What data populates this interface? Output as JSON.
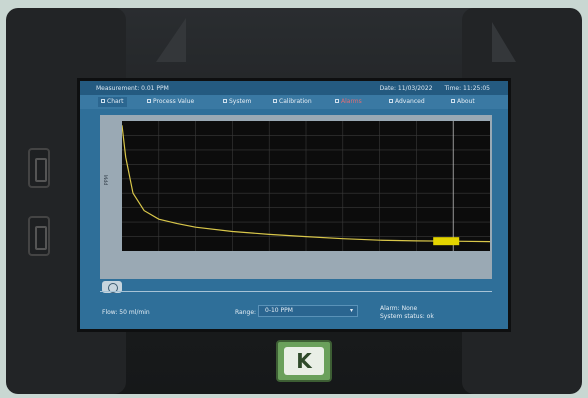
{
  "topbar": {
    "measurement": "Measurement: 0.01 PPM",
    "date": "Date: 11/03/2022",
    "time": "Time: 11:25:05"
  },
  "tabs": [
    {
      "label": "Chart",
      "active": true
    },
    {
      "label": "Process Value"
    },
    {
      "label": "System"
    },
    {
      "label": "Calibration"
    },
    {
      "label": "Alarms"
    },
    {
      "label": "Advanced"
    },
    {
      "label": "About"
    }
  ],
  "chart": {
    "ylabel": "PPM"
  },
  "footer": {
    "flow": "Flow: 50 ml/min",
    "range_label": "Range:",
    "range_value": "0-10 PPM",
    "alarm": "Alarm: None",
    "system_status": "System status: ok"
  },
  "logo": {
    "text": "K"
  },
  "chart_data": {
    "type": "line",
    "x": [
      0,
      0.1,
      0.3,
      0.6,
      1,
      1.5,
      2,
      3,
      4,
      5,
      6,
      7,
      8,
      9,
      10
    ],
    "y": [
      8.7,
      6.5,
      4.0,
      2.8,
      2.2,
      1.9,
      1.65,
      1.35,
      1.15,
      1.0,
      0.85,
      0.75,
      0.7,
      0.68,
      0.65
    ],
    "xlim": [
      0,
      10
    ],
    "ylim": [
      0,
      9
    ],
    "grid": true,
    "colors": {
      "line": "#d9c74a",
      "marker": "#e3d400",
      "grid": "#3a3a3a"
    }
  }
}
